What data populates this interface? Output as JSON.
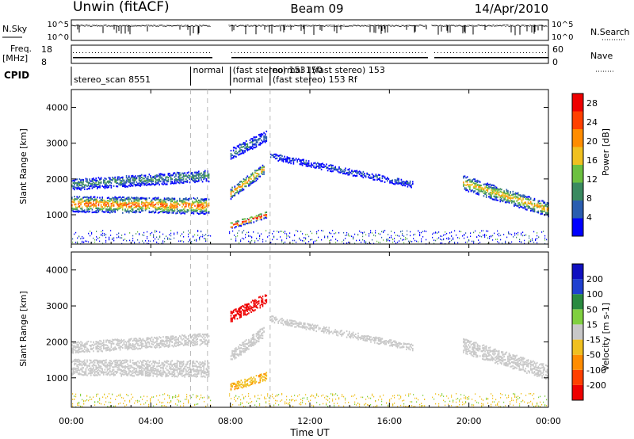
{
  "header": {
    "station": "Unwin (fitACF)",
    "beam": "Beam 09",
    "date": "14/Apr/2010"
  },
  "top_panels": {
    "nsky_label": "N.Sky",
    "nsky_ticks": [
      "10^5",
      "10^0"
    ],
    "nsearch_label": "N.Search",
    "nsearch_ticks": [
      "10^5",
      "10^0"
    ],
    "freq_label": "Freq.",
    "freq_unit": "[MHz]",
    "freq_ticks": [
      "18",
      "8"
    ],
    "nave_label": "Nave",
    "nave_ticks": [
      "60",
      "0"
    ],
    "cpid_label": "CPID",
    "cpid_entries": [
      {
        "text": "stereo_scan 8551",
        "start_hour": 0.0,
        "row": 2
      },
      {
        "text": "normal",
        "start_hour": 6.0,
        "row": 0
      },
      {
        "text": "normal",
        "start_hour": 8.0,
        "row": 2
      },
      {
        "text": "(fast stereo) 153",
        "start_hour": 8.0,
        "row": 0
      },
      {
        "text": "(fast stereo) 153 Rf",
        "start_hour": 10.0,
        "row": 2
      },
      {
        "text": "normal 150",
        "start_hour": 10.0,
        "row": 0
      },
      {
        "text": "(fast stereo) 153",
        "start_hour": 12.0,
        "row": 0
      }
    ]
  },
  "x_axis": {
    "label": "Time UT",
    "ticks": [
      "00:00",
      "04:00",
      "08:00",
      "12:00",
      "16:00",
      "20:00",
      "00:00"
    ]
  },
  "colors": {
    "power": [
      "#0000ff",
      "#2a5db0",
      "#3a8a60",
      "#6cc040",
      "#f0c020",
      "#ff8c00",
      "#ff4000",
      "#ee0000"
    ],
    "velocity": [
      "#1010c0",
      "#2040d0",
      "#2a8a40",
      "#80d040",
      "#c8c8c8",
      "#f0c020",
      "#ff8c00",
      "#ff4000",
      "#ee0000"
    ],
    "ground": "#a0a0a0"
  },
  "chart_data": [
    {
      "type": "heatmap",
      "panel": "power",
      "ylabel": "Slant Range [km]",
      "yticks": [
        "1000",
        "2000",
        "3000",
        "4000"
      ],
      "ylim": [
        180,
        4500
      ],
      "xlim": [
        0,
        24
      ],
      "colorbar_label": "Power [dB]",
      "colorbar_ticks": [
        "4",
        "8",
        "12",
        "16",
        "20",
        "24",
        "28"
      ],
      "colorbar_range": [
        0,
        30
      ],
      "gaps_hours": [
        [
          7.0,
          7.9
        ],
        [
          17.9,
          18.1
        ]
      ],
      "echo_bands": [
        {
          "x": [
            0.0,
            6.9
          ],
          "center": [
            1300,
            1250
          ],
          "width": 420,
          "peak": 24
        },
        {
          "x": [
            0.0,
            6.9
          ],
          "center": [
            1850,
            2100
          ],
          "width": 300,
          "peak": 10
        },
        {
          "x": [
            8.0,
            9.8
          ],
          "center": [
            700,
            1000
          ],
          "width": 160,
          "peak": 28
        },
        {
          "x": [
            8.0,
            9.7
          ],
          "center": [
            1600,
            2300
          ],
          "width": 300,
          "peak": 22
        },
        {
          "x": [
            8.0,
            9.8
          ],
          "center": [
            2700,
            3200
          ],
          "width": 280,
          "peak": 8
        },
        {
          "x": [
            10.0,
            17.2
          ],
          "center": [
            2650,
            1850
          ],
          "width": 160,
          "peak": 6
        },
        {
          "x": [
            19.7,
            24.0
          ],
          "center": [
            1900,
            1150
          ],
          "width": 380,
          "peak": 20
        }
      ]
    },
    {
      "type": "heatmap",
      "panel": "velocity",
      "ylabel": "Slant Range [km]",
      "yticks": [
        "1000",
        "2000",
        "3000",
        "4000"
      ],
      "ylim": [
        180,
        4500
      ],
      "xlim": [
        0,
        24
      ],
      "colorbar_label": "Velocity [m s-1]",
      "colorbar_ticks": [
        "200",
        "100",
        "50",
        "15",
        "-15",
        "-50",
        "-100",
        "-200"
      ],
      "gaps_hours": [
        [
          7.0,
          7.9
        ],
        [
          17.9,
          18.1
        ]
      ],
      "echo_bands": [
        {
          "x": [
            0.0,
            6.9
          ],
          "center": [
            1300,
            1250
          ],
          "width": 420,
          "velocity": 0
        },
        {
          "x": [
            0.0,
            6.9
          ],
          "center": [
            1850,
            2100
          ],
          "width": 300,
          "velocity": 0
        },
        {
          "x": [
            8.0,
            9.8
          ],
          "center": [
            750,
            1050
          ],
          "width": 200,
          "velocity": -45
        },
        {
          "x": [
            8.0,
            9.7
          ],
          "center": [
            1600,
            2300
          ],
          "width": 300,
          "velocity": 0
        },
        {
          "x": [
            8.0,
            9.8
          ],
          "center": [
            2700,
            3200
          ],
          "width": 280,
          "velocity": -230
        },
        {
          "x": [
            10.0,
            17.2
          ],
          "center": [
            2650,
            1850
          ],
          "width": 160,
          "velocity": 0
        },
        {
          "x": [
            19.7,
            24.0
          ],
          "center": [
            1900,
            1150
          ],
          "width": 380,
          "velocity": 0
        }
      ]
    }
  ]
}
